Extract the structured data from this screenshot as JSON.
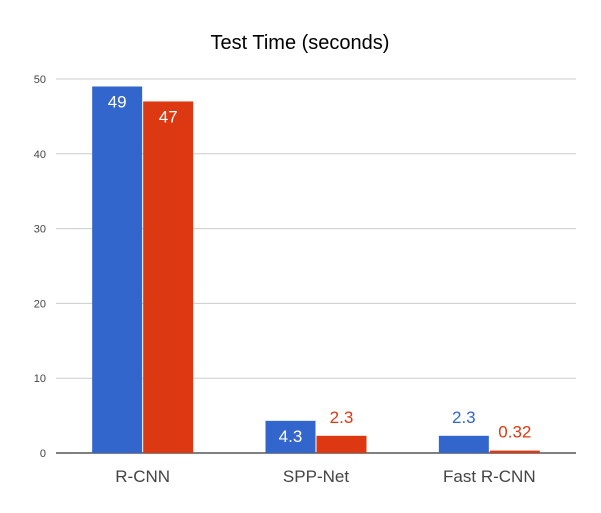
{
  "chart_data": {
    "type": "bar",
    "title": "Test Time (seconds)",
    "categories": [
      "R-CNN",
      "SPP-Net",
      "Fast R-CNN"
    ],
    "series": [
      {
        "values": [
          49,
          4.3,
          2.3
        ],
        "labels": [
          "49",
          "4.3",
          "2.3"
        ],
        "color": "#3366cc"
      },
      {
        "values": [
          47,
          2.3,
          0.32
        ],
        "labels": [
          "47",
          "2.3",
          "0.32"
        ],
        "color": "#dc3912"
      }
    ],
    "ylim": [
      0,
      50
    ],
    "yticks": [
      0,
      10,
      20,
      30,
      40,
      50
    ],
    "grid": true,
    "legend": "none"
  }
}
